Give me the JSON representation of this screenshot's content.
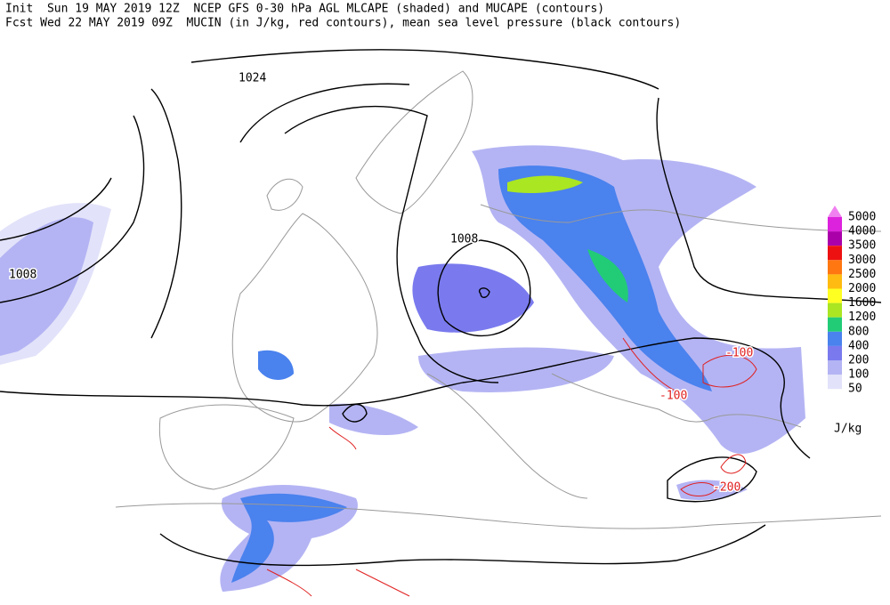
{
  "header": {
    "line1": "Init  Sun 19 MAY 2019 12Z  NCEP GFS 0-30 hPa AGL MLCAPE (shaded) and MUCAPE (contours)",
    "line2": "Fcst Wed 22 MAY 2019 09Z  MUCIN (in J/kg, red contours), mean sea level pressure (black contours)"
  },
  "contour_labels": [
    1024,
    1008,
    1008,
    -100,
    -100,
    -200
  ],
  "legend": {
    "unit": "J/kg",
    "levels": [
      {
        "value": 5000,
        "color": "#f080f0"
      },
      {
        "value": 4000,
        "color": "#dd22dd"
      },
      {
        "value": 3500,
        "color": "#aa00aa"
      },
      {
        "value": 3000,
        "color": "#ee1111"
      },
      {
        "value": 2500,
        "color": "#ff7711"
      },
      {
        "value": 2000,
        "color": "#ffbb11"
      },
      {
        "value": 1600,
        "color": "#ffff22"
      },
      {
        "value": 1200,
        "color": "#aae622"
      },
      {
        "value": 800,
        "color": "#22cc77"
      },
      {
        "value": 400,
        "color": "#4a82ee"
      },
      {
        "value": 200,
        "color": "#7a7aee"
      },
      {
        "value": 100,
        "color": "#b4b4f4"
      },
      {
        "value": 50,
        "color": "#e2e2fa"
      }
    ]
  }
}
